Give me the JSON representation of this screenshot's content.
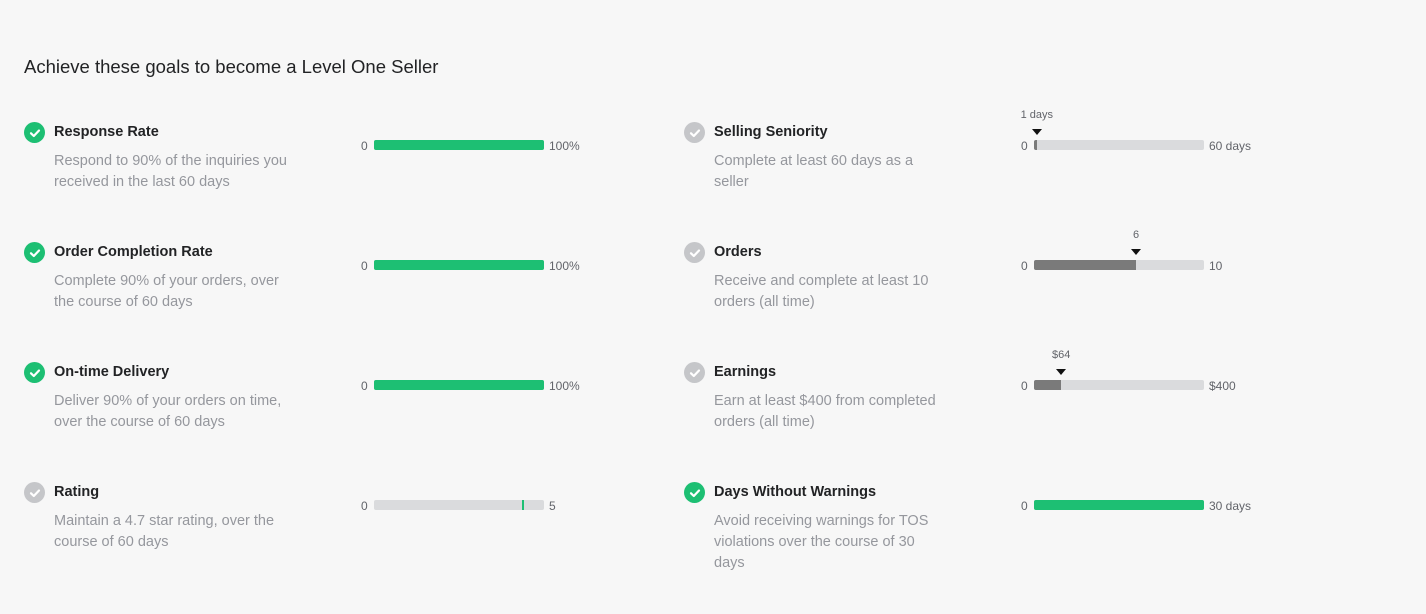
{
  "title": "Achieve these goals to become a Level One Seller",
  "colors": {
    "achieved": "#1dbf73",
    "pending": "#c5c6c9",
    "progress_fill": "#7a7a7a",
    "track": "#dadbdd"
  },
  "goals": [
    {
      "name": "Response Rate",
      "description": "Respond to 90% of the inquiries you received in the last 60 days",
      "achieved": true,
      "min_label": "0",
      "max_label": "100%",
      "value": 100,
      "max": 100
    },
    {
      "name": "Order Completion Rate",
      "description": "Complete 90% of your orders, over the course of 60 days",
      "achieved": true,
      "min_label": "0",
      "max_label": "100%",
      "value": 100,
      "max": 100
    },
    {
      "name": "On-time Delivery",
      "description": "Deliver 90% of your orders on time, over the course of 60 days",
      "achieved": true,
      "min_label": "0",
      "max_label": "100%",
      "value": 100,
      "max": 100
    },
    {
      "name": "Rating",
      "description": "Maintain a 4.7 star rating, over the course of 60 days",
      "achieved": false,
      "min_label": "0",
      "max_label": "5",
      "value": 0,
      "max": 5,
      "threshold": 4.7
    },
    {
      "name": "Selling Seniority",
      "description": "Complete at least 60 days as a seller",
      "achieved": false,
      "min_label": "0",
      "max_label": "60 days",
      "value": 1,
      "max": 60,
      "value_label": "1 days"
    },
    {
      "name": "Orders",
      "description": "Receive and complete at least 10 orders (all time)",
      "achieved": false,
      "min_label": "0",
      "max_label": "10",
      "value": 6,
      "max": 10,
      "value_label": "6"
    },
    {
      "name": "Earnings",
      "description": "Earn at least $400 from completed orders (all time)",
      "achieved": false,
      "min_label": "0",
      "max_label": "$400",
      "value": 64,
      "max": 400,
      "value_label": "$64"
    },
    {
      "name": "Days Without Warnings",
      "description": "Avoid receiving warnings for TOS violations over the course of 30 days",
      "achieved": true,
      "min_label": "0",
      "max_label": "30 days",
      "value": 30,
      "max": 30
    }
  ]
}
